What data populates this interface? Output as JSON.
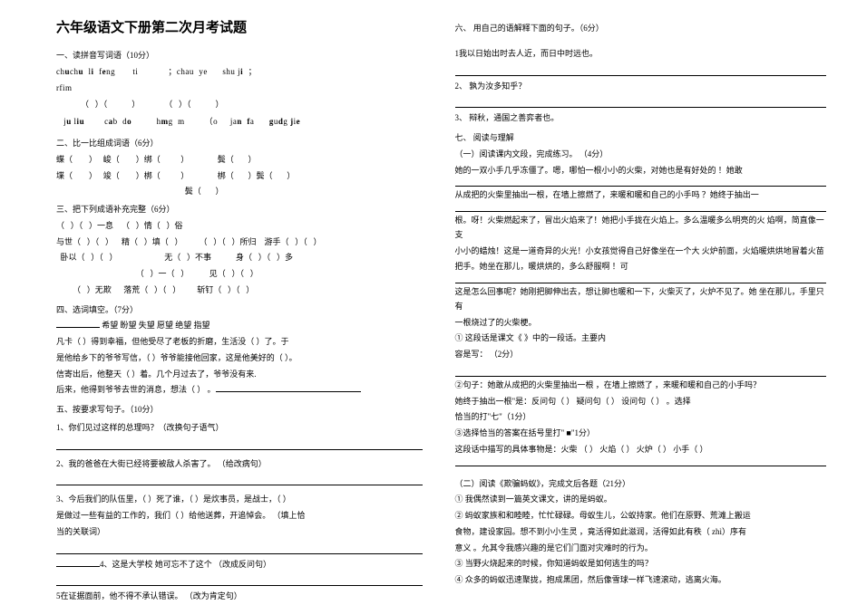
{
  "title": "六年级语文下册第二次月考试题",
  "s1": {
    "head": "一、读拼音写词语（10分）",
    "pinyin_line1_parts": [
      "ch",
      "u",
      "ch",
      "u",
      "  ",
      "l",
      "i",
      "  ",
      "f",
      "e",
      "ng",
      "       ",
      "t",
      "i",
      "            ；",
      "ch",
      "a",
      "u  y",
      "e",
      "      sh",
      "u",
      " j",
      "i",
      "  ；"
    ],
    "pinyin_bold_idx1": [
      1,
      3,
      6,
      9,
      22,
      26,
      30
    ],
    "pinyin_line1b": "rfim",
    "paren_row1": "            （   ）（            ）            （   ）（            ）",
    "pinyin_line2_parts": [
      "   j",
      "u",
      " l",
      "i",
      "u",
      "        c",
      "a",
      "b  d",
      "o",
      "          h",
      "m",
      "g  m",
      "        ",
      "（",
      "o     j",
      "a",
      "n  f",
      "a",
      "      g",
      "u",
      "d",
      "g",
      " j",
      "i",
      "e"
    ],
    "pinyin_bold_idx2": [
      1,
      3,
      4,
      6,
      8,
      10,
      16,
      18,
      20,
      22,
      24
    ],
    "paren_row2": ""
  },
  "s2": {
    "head": "二、比一比组成词语（6分）",
    "r1": "蝶（        ）   峻（        ）绑（          ）              鬓（       ）",
    "r2": "堞（        ）   竣（        ）梆（          ）              梆（       ）鬓（       ）",
    "r3": "                                                               鬓（       ）"
  },
  "s3": {
    "head": "三、把下列成语补充完整（6分）",
    "r1": "（   ）（   ）一息    （   ）情（   ）俗",
    "r2": "与世（   ）（   ）    精（   ）填（   ）        （   ）（   ）所归    游手（   ）（   ）",
    "r3": "  卧以（   ）（   ）                       无（   ）不事            身（   ）（   ）多",
    "r4": "                                       （   ）一（   ）          见（   ）（   ）",
    "r5": "        （   ）无欺      落荒（   ）（   ）        斩钉（   ）（   ）"
  },
  "s4": {
    "head": "四、选词填空。（7分）",
    "choices": "    希望        盼望        失望        愿望        绝望        指望",
    "l1": "凡卡（        ）得到幸福，但他受尽了老板的折磨，生活没（                    ）了。于",
    "l2": "是他给乡下的爷爷写信，（          ）爷爷能接他回家，这是他美好的（            ）。",
    "l3": "信寄出后，他整天（      ）着。几个月过去了，爷爷没有来.",
    "l4": "后来，他得到爷爷去世的消息，想法（      ）                    。"
  },
  "s5": {
    "head": "五、按要求写句子。（10分）",
    "q1": "1、你们见过这样的总理吗？（改换句子语气）",
    "q2": "2、我的爸爸在大街已经将要被敌人杀害了。            （给改病句）",
    "q3a": "3、今后我们的队伍里，（            ）死了谁，（      ）是炊事员，是战士，（      ）",
    "q3b": "是做过一些有益的工作的，我们（      ）给他送葬，开追悼会。                  （填上恰",
    "q3c": "当的关联词）",
    "q4": "4、这是大学校              她可忘不了这个                    （改成反问句）",
    "q5": "5在证据面前，他不得不承认错误。            （改为肯定句）"
  },
  "s6": {
    "head": "六、 用自己的语解释下面的句子。（6分）",
    "q1": "1我以日始出时去人近，而日中时远也。",
    "q2": "2、 孰为汝多知乎？",
    "q3": "3、 辩秋，通国之善弈者也。"
  },
  "s7": {
    "head": "七、 阅读与理解",
    "p1_head": "（一）阅读课内文段，完成练习。            （4分）",
    "p1_l1": "    她的一双小手几乎冻僵了。嗯，哪怕一根小小的火柴，对她也是有好处的                  ！她敢",
    "p1_l2": "从成把的火柴里抽出一根，在墙上擦燃了，来暖和暖和自己的小手吗                       ？她终于抽出一",
    "p1_l3": "根。呀！火柴燃起来了，冒出火焰来了！她把小手拢在火焰上。多么温暖多么明亮的火  焰啊，简直像一支",
    "p1_l4": "小小的蜡烛！这是一道奇异的火光！小女孩觉得自己好像坐在一个大  火炉前面，火焰暖烘烘地冒着火苗",
    "p1_l5": "把手。她坐在那儿，暖烘烘的，多么舒服啊                                                  ！可",
    "p1_l6": "这是怎么回事呢？她刚把脚伸出去，想让脚也暖和一下，火柴灭了，火炉不见了。她 坐在那儿，手里只有",
    "p1_l7": "一根烧过了的火柴梗。",
    "q1a": "①                                   这段话是课文《                    》中的一段话。主要内",
    "q1b": "容是写：                                （2分）",
    "q2a": "②句子：她敢从成把的火柴里抽出一根            ，在墙上擦燃了            ，来暖和暖和自己的小手吗？",
    "q2b": "她终于抽出一根\"是：反问句（        ）       疑问句（        ）      设问句（        ）  。选择",
    "q2c": "恰当的打\"七\"（1分）",
    "q3": "③选择恰当的答案在括号里打\"           ■\"1分）",
    "q4": "这段话中描写的具体事物是：火柴                        （   ）  火焰（      ）  火炉（      ） 小手（   ）",
    "p2_head": "（二）阅读《欺骗蚂蚁》，完成文后各题（21分）",
    "p2_l1": "①  我偶然读到一篇英文课文，讲的是蚂蚁。",
    "p2_l2": "②  蚂蚁家族和和睦睦，忙忙碌碌。母蚁生儿，公蚁持家。他们在原野、荒滩上搬运",
    "p2_l3": "食物，建设家园。想不到小小生灵 ，竟活得如此滋润，活得如此有秩（            zhì）序有",
    "p2_l4": "意义 。允其令我感兴趣的是它们门面对灾难时的行为。",
    "p2_l5": "③  当野火烧起来的时候，你知道蚂蚁是如何逃生的吗？",
    "p2_l6": "④  众多的蚂蚁迅速聚拢，抱成黑团，然后像雪球一样飞速滚动，逃离火海。"
  }
}
